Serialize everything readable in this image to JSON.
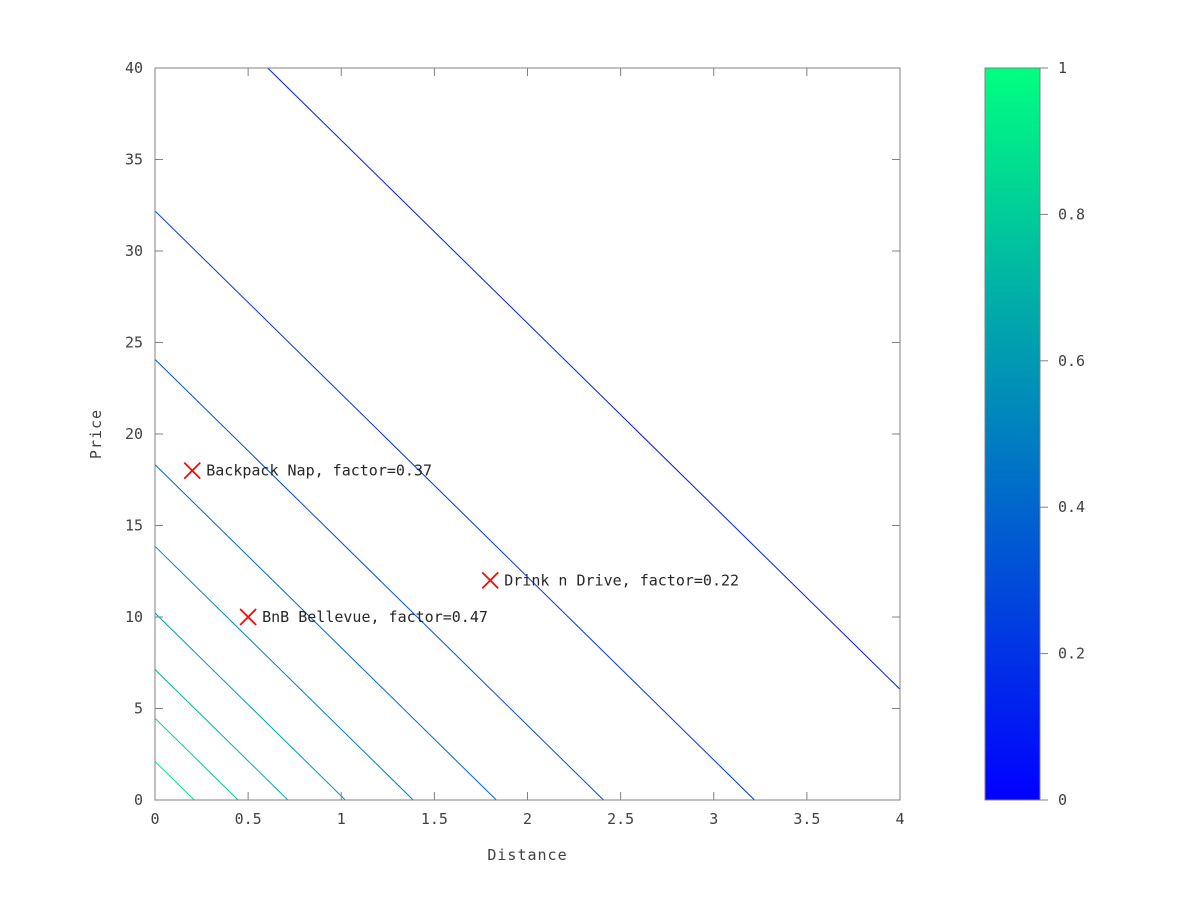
{
  "chart_data": {
    "type": "contour",
    "title": "",
    "xlabel": "Distance",
    "ylabel": "Price",
    "xlim": [
      0,
      4
    ],
    "ylim": [
      0,
      40
    ],
    "xticks": [
      "0",
      "0.5",
      "1",
      "1.5",
      "2",
      "2.5",
      "3",
      "3.5",
      "4"
    ],
    "yticks": [
      "0",
      "5",
      "10",
      "15",
      "20",
      "25",
      "30",
      "35",
      "40"
    ],
    "grid": false,
    "contours": {
      "levels": [
        0.1,
        0.2,
        0.3,
        0.4,
        0.5,
        0.6,
        0.7,
        0.8,
        0.9
      ],
      "model": "factor = exp(-(price + 10*distance)/20)",
      "distance_weight": 10,
      "decay_scale": 20
    },
    "points": [
      {
        "x": 0.2,
        "y": 18,
        "factor": 0.37,
        "label": "Backpack Nap, factor=0.37"
      },
      {
        "x": 1.8,
        "y": 12,
        "factor": 0.22,
        "label": "Drink n Drive, factor=0.22"
      },
      {
        "x": 0.5,
        "y": 10,
        "factor": 0.47,
        "label": "BnB Bellevue, factor=0.47"
      }
    ],
    "colorbar": {
      "min": 0,
      "max": 1,
      "ticks": [
        "0",
        "0.2",
        "0.4",
        "0.6",
        "0.8",
        "1"
      ],
      "color_low": "#0000ff",
      "color_high": "#00ff80"
    },
    "marker_color": "#ff0000",
    "axis_color": "#808080",
    "text_color": "#404040"
  }
}
